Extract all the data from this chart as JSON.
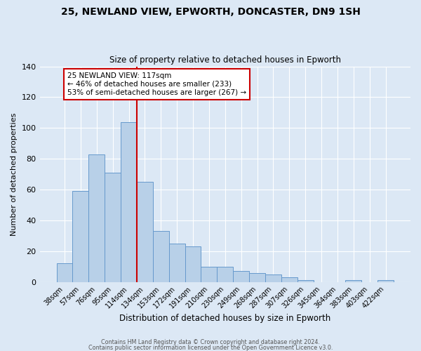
{
  "title1": "25, NEWLAND VIEW, EPWORTH, DONCASTER, DN9 1SH",
  "title2": "Size of property relative to detached houses in Epworth",
  "xlabel": "Distribution of detached houses by size in Epworth",
  "ylabel": "Number of detached properties",
  "categories": [
    "38sqm",
    "57sqm",
    "76sqm",
    "95sqm",
    "114sqm",
    "134sqm",
    "153sqm",
    "172sqm",
    "191sqm",
    "210sqm",
    "230sqm",
    "249sqm",
    "268sqm",
    "287sqm",
    "307sqm",
    "326sqm",
    "345sqm",
    "364sqm",
    "383sqm",
    "403sqm",
    "422sqm"
  ],
  "values": [
    12,
    59,
    83,
    71,
    104,
    65,
    33,
    25,
    23,
    10,
    10,
    7,
    6,
    5,
    3,
    1,
    0,
    0,
    1,
    0,
    1
  ],
  "bar_color": "#b8d0e8",
  "bar_edge_color": "#6699cc",
  "vline_color": "#cc0000",
  "ylim": [
    0,
    140
  ],
  "yticks": [
    0,
    20,
    40,
    60,
    80,
    100,
    120,
    140
  ],
  "annotation_title": "25 NEWLAND VIEW: 117sqm",
  "annotation_line1": "← 46% of detached houses are smaller (233)",
  "annotation_line2": "53% of semi-detached houses are larger (267) →",
  "annotation_box_color": "#ffffff",
  "annotation_box_edge": "#cc0000",
  "footer1": "Contains HM Land Registry data © Crown copyright and database right 2024.",
  "footer2": "Contains public sector information licensed under the Open Government Licence v3.0.",
  "background_color": "#dce8f5",
  "plot_background": "#dce8f5"
}
